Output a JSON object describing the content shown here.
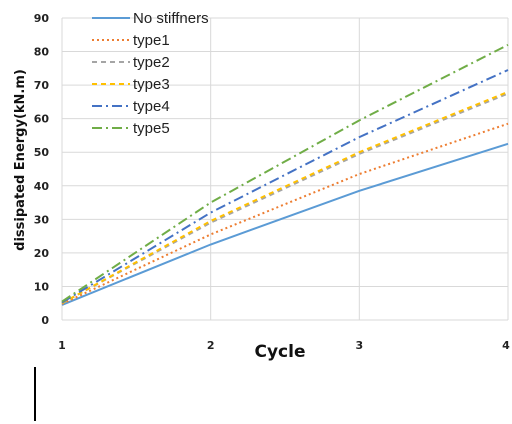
{
  "chart_data": {
    "type": "line",
    "xlabel": "Cycle",
    "ylabel": "dissipated Energy(kN.m)",
    "x": [
      1,
      2,
      3,
      4
    ],
    "xlim": [
      1,
      4
    ],
    "ylim": [
      0,
      90
    ],
    "yticks": [
      0,
      10,
      20,
      30,
      40,
      50,
      60,
      70,
      80,
      90
    ],
    "xticks": [
      1,
      2,
      3,
      4
    ],
    "grid": true,
    "legend_position": "top-left",
    "series": [
      {
        "name": "No stiffners",
        "values": [
          4.5,
          22.5,
          38.5,
          52.5
        ],
        "color": "#5b9bd5",
        "dash": "solid"
      },
      {
        "name": "type1",
        "values": [
          4.8,
          25.5,
          43.5,
          58.5
        ],
        "color": "#ed7d31",
        "dash": "dotted"
      },
      {
        "name": "type2",
        "values": [
          5.0,
          29.0,
          49.5,
          67.5
        ],
        "color": "#a5a5a5",
        "dash": "dashed"
      },
      {
        "name": "type3",
        "values": [
          5.0,
          29.5,
          50.0,
          68.0
        ],
        "color": "#ffc000",
        "dash": "dashed"
      },
      {
        "name": "type4",
        "values": [
          5.2,
          32.0,
          54.5,
          74.5
        ],
        "color": "#4472c4",
        "dash": "dashdot"
      },
      {
        "name": "type5",
        "values": [
          5.5,
          35.0,
          59.5,
          82.0
        ],
        "color": "#70ad47",
        "dash": "dashdot"
      }
    ]
  }
}
